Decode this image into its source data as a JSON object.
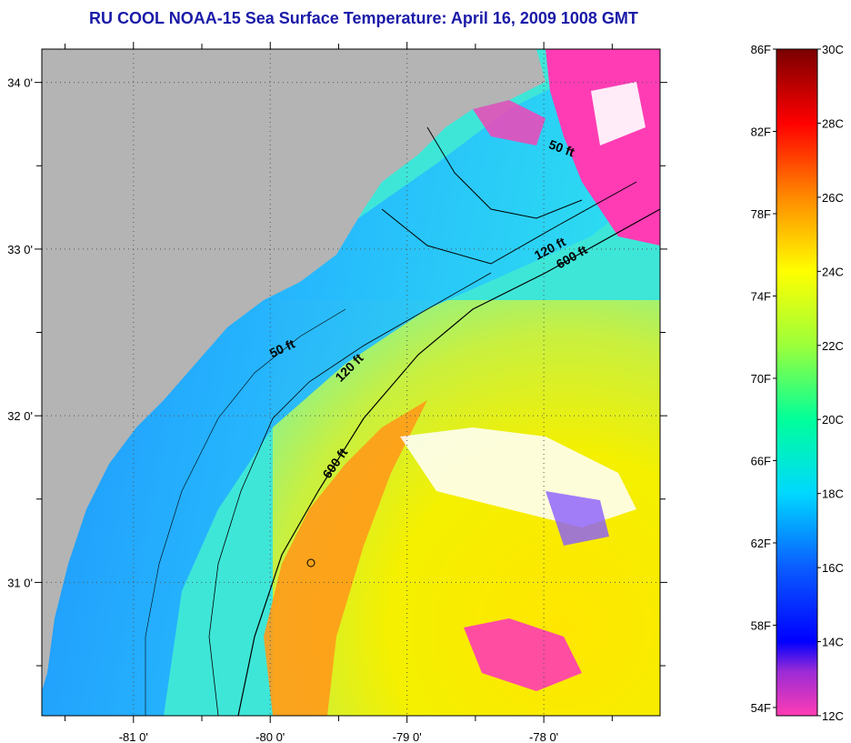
{
  "title": "RU COOL  NOAA-15  Sea Surface Temperature:  April 16, 2009 1008 GMT",
  "map": {
    "lat_range": [
      30.2,
      34.2
    ],
    "lon_range": [
      -81.67,
      -77.15
    ],
    "lat_ticks": [
      {
        "value": 34,
        "label": "34 0'"
      },
      {
        "value": 33,
        "label": "33 0'"
      },
      {
        "value": 32,
        "label": "32 0'"
      },
      {
        "value": 31,
        "label": "31 0'"
      }
    ],
    "lon_ticks": [
      {
        "value": -81,
        "label": "-81 0'"
      },
      {
        "value": -80,
        "label": "-80 0'"
      },
      {
        "value": -79,
        "label": "-79 0'"
      },
      {
        "value": -78,
        "label": "-78 0'"
      }
    ],
    "land_color": "#b4b4b4",
    "contour_labels": [
      {
        "id": "contour-50ft-north",
        "text": "50 ft",
        "lon": -77.88,
        "lat": 33.58,
        "rotate": 20
      },
      {
        "id": "contour-120ft-north",
        "text": "120 ft",
        "lon": -77.94,
        "lat": 32.98,
        "rotate": -28
      },
      {
        "id": "contour-600ft-north",
        "text": "600 ft",
        "lon": -77.78,
        "lat": 32.93,
        "rotate": -30
      },
      {
        "id": "contour-50ft-south",
        "text": "50 ft",
        "lon": -79.9,
        "lat": 32.38,
        "rotate": -25
      },
      {
        "id": "contour-120ft-south",
        "text": "120 ft",
        "lon": -79.4,
        "lat": 32.27,
        "rotate": -45
      },
      {
        "id": "contour-600ft-south",
        "text": "600 ft",
        "lon": -79.5,
        "lat": 31.7,
        "rotate": -55
      }
    ]
  },
  "colorbar": {
    "fahrenheit_labels": [
      "86F",
      "82F",
      "78F",
      "74F",
      "70F",
      "66F",
      "62F",
      "58F",
      "54F"
    ],
    "celsius_labels": [
      "30C",
      "28C",
      "26C",
      "24C",
      "22C",
      "20C",
      "18C",
      "16C",
      "14C",
      "12C"
    ],
    "celsius_range": [
      12,
      30
    ],
    "stops": [
      {
        "c": 12,
        "color": "#ff3cb4"
      },
      {
        "c": 13.2,
        "color": "#9a2bd6"
      },
      {
        "c": 14,
        "color": "#0000ff"
      },
      {
        "c": 16,
        "color": "#0a5cff"
      },
      {
        "c": 18,
        "color": "#00d8ff"
      },
      {
        "c": 20,
        "color": "#00ff9a"
      },
      {
        "c": 22,
        "color": "#9cff3a"
      },
      {
        "c": 24,
        "color": "#ffff00"
      },
      {
        "c": 26,
        "color": "#ff8a00"
      },
      {
        "c": 28,
        "color": "#ff0000"
      },
      {
        "c": 30,
        "color": "#7a0000"
      }
    ]
  }
}
